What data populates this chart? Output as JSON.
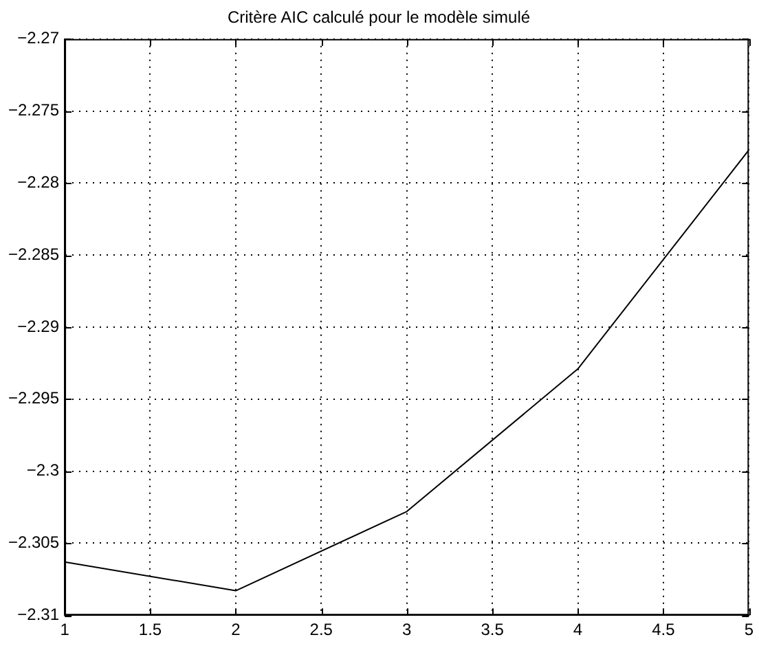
{
  "chart_data": {
    "type": "line",
    "title": "Critère AIC calculé pour le modèle simulé",
    "x": [
      1,
      2,
      3,
      4,
      5
    ],
    "series": [
      {
        "color": "#000000",
        "values": [
          -2.3063,
          -2.3083,
          -2.3028,
          -2.2929,
          -2.2777
        ]
      }
    ],
    "xlim": [
      1,
      5
    ],
    "xticks": [
      1,
      1.5,
      2,
      2.5,
      3,
      3.5,
      4,
      4.5,
      5
    ],
    "ylim": [
      -2.31,
      -2.27
    ],
    "yticks": [
      -2.31,
      -2.305,
      -2.3,
      -2.295,
      -2.29,
      -2.285,
      -2.28,
      -2.275,
      -2.27
    ],
    "grid": true,
    "legend": false,
    "marker": "none",
    "line_style": "solid"
  }
}
